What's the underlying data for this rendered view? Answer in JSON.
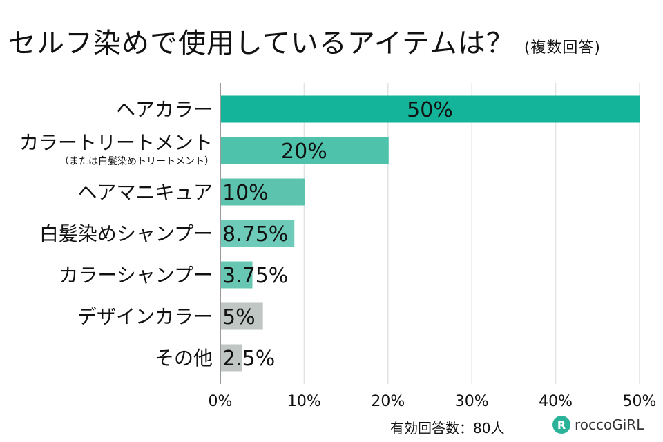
{
  "title": "セルフ染めで使用しているアイテムは？",
  "subtitle": "(複数回答)",
  "footer": "有効回答数：80人",
  "brand": {
    "name": "roccoGiRL",
    "logo_letter": "R"
  },
  "chart_data": {
    "type": "bar",
    "orientation": "horizontal",
    "title": "セルフ染めで使用しているアイテムは？",
    "categories": [
      "ヘアカラー",
      "カラートリートメント",
      "ヘアマニキュア",
      "白髪染めシャンプー",
      "カラーシャンプー",
      "デザインカラー",
      "その他"
    ],
    "category_notes": [
      "",
      "（または白髪染めトリートメント）",
      "",
      "",
      "",
      "",
      ""
    ],
    "values": [
      50,
      20,
      10,
      8.75,
      3.75,
      5,
      2.5
    ],
    "value_labels": [
      "50%",
      "20%",
      "10%",
      "8.75%",
      "3.75%",
      "5%",
      "2.5%"
    ],
    "colors": [
      "#14b49a",
      "#4fc2ab",
      "#5cc3ae",
      "#6fcbb9",
      "#68c7b2",
      "#bfc6c3",
      "#bfc6c3"
    ],
    "xlim": [
      0,
      50
    ],
    "xticks": [
      "0%",
      "10%",
      "20%",
      "30%",
      "40%",
      "50%"
    ],
    "grid": true
  }
}
